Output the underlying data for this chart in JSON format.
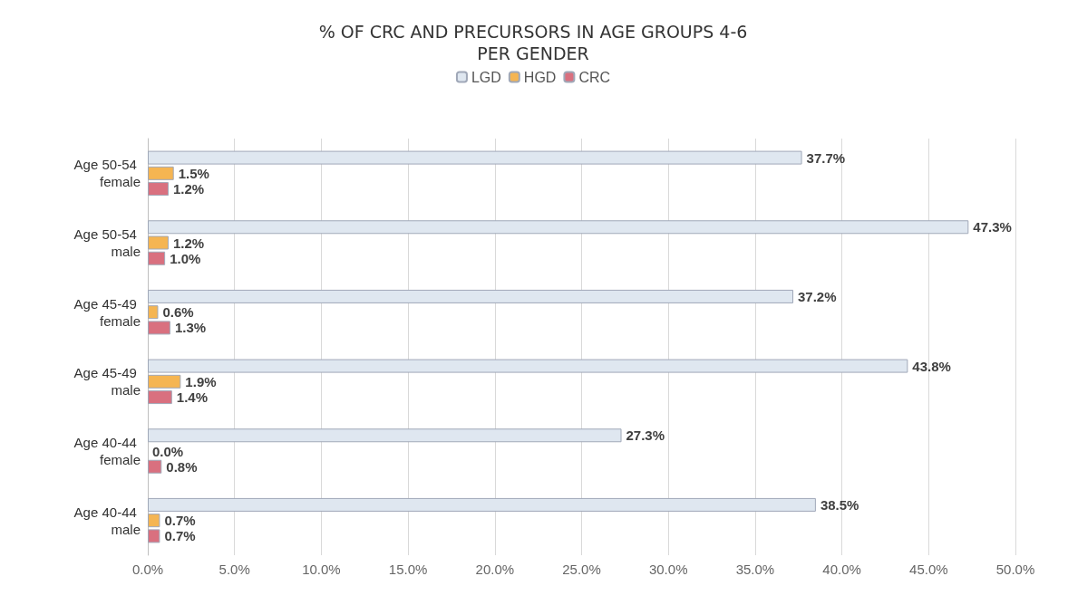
{
  "chart_data": {
    "type": "bar",
    "orientation": "horizontal",
    "title": "% OF CRC AND PRECURSORS IN AGE GROUPS 4-6\nPER GENDER",
    "categories": [
      "Age 50-54 female",
      "Age 50-54 male",
      "Age 45-49 female",
      "Age 45-49 male",
      "Age 40-44 female",
      "Age 40-44 male"
    ],
    "series": [
      {
        "name": "LGD",
        "color": "#dfe7f0",
        "values": [
          37.7,
          47.3,
          37.2,
          43.8,
          27.3,
          38.5
        ],
        "value_labels": [
          "37.7%",
          "47.3%",
          "37.2%",
          "43.8%",
          "27.3%",
          "38.5%"
        ]
      },
      {
        "name": "HGD",
        "color": "#f5b552",
        "values": [
          1.5,
          1.2,
          0.6,
          1.9,
          0.0,
          0.7
        ],
        "value_labels": [
          "1.5%",
          "1.2%",
          "0.6%",
          "1.9%",
          "0.0%",
          "0.7%"
        ]
      },
      {
        "name": "CRC",
        "color": "#d9707f",
        "values": [
          1.2,
          1.0,
          1.3,
          1.4,
          0.8,
          0.7
        ],
        "value_labels": [
          "1.2%",
          "1.0%",
          "1.3%",
          "1.4%",
          "0.8%",
          "0.7%"
        ]
      }
    ],
    "xlim": [
      0,
      50
    ],
    "xticks": [
      {
        "value": 0,
        "label": "0.0%"
      },
      {
        "value": 5,
        "label": "5.0%"
      },
      {
        "value": 10,
        "label": "10.0%"
      },
      {
        "value": 15,
        "label": "15.0%"
      },
      {
        "value": 20,
        "label": "20.0%"
      },
      {
        "value": 25,
        "label": "25.0%"
      },
      {
        "value": 30,
        "label": "30.0%"
      },
      {
        "value": 35,
        "label": "35.0%"
      },
      {
        "value": 40,
        "label": "40.0%"
      },
      {
        "value": 45,
        "label": "45.0%"
      },
      {
        "value": 50,
        "label": "50.0%"
      }
    ],
    "grid": "x",
    "legend": "top"
  }
}
